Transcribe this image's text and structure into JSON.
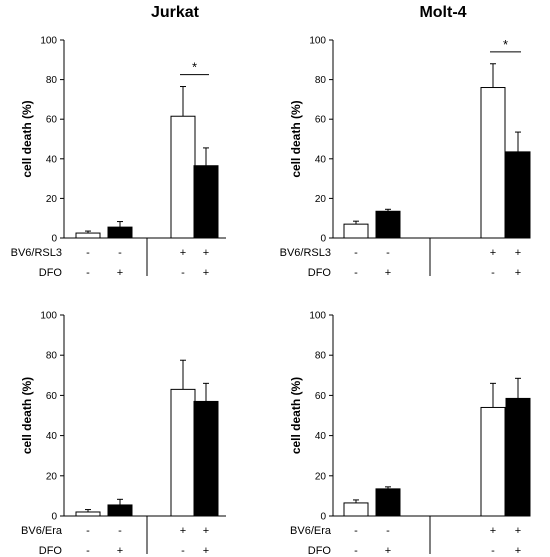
{
  "column_titles": [
    "Jurkat",
    "Molt-4"
  ],
  "colors": {
    "open_bar": "#ffffff",
    "filled_bar": "#000000",
    "stroke": "#000000"
  },
  "chart_data": [
    {
      "type": "bar",
      "panel": "Jurkat BV6/RSL3",
      "ylabel": "cell death (%)",
      "ylim": [
        0,
        100
      ],
      "yticks": [
        0,
        20,
        40,
        60,
        80,
        100
      ],
      "groups": [
        {
          "BV6/RSL3": "-",
          "DFO": "-",
          "value": 2.5,
          "error": 1.0,
          "fill": "open"
        },
        {
          "BV6/RSL3": "-",
          "DFO": "+",
          "value": 5.5,
          "error": 2.8,
          "fill": "filled"
        },
        {
          "BV6/RSL3": "+",
          "DFO": "-",
          "value": 61.5,
          "error": 15.0,
          "fill": "open"
        },
        {
          "BV6/RSL3": "+",
          "DFO": "+",
          "value": 36.5,
          "error": 9.0,
          "fill": "filled"
        }
      ],
      "row_labels": [
        "BV6/RSL3",
        "DFO"
      ],
      "significance": [
        {
          "between": [
            2,
            3
          ],
          "label": "*"
        }
      ]
    },
    {
      "type": "bar",
      "panel": "Molt-4 BV6/RSL3",
      "ylabel": "cell death (%)",
      "ylim": [
        0,
        100
      ],
      "yticks": [
        0,
        20,
        40,
        60,
        80,
        100
      ],
      "groups": [
        {
          "BV6/RSL3": "-",
          "DFO": "-",
          "value": 7.0,
          "error": 1.5,
          "fill": "open"
        },
        {
          "BV6/RSL3": "-",
          "DFO": "+",
          "value": 13.5,
          "error": 1.0,
          "fill": "filled"
        },
        {
          "BV6/RSL3": "+",
          "DFO": "-",
          "value": 76.0,
          "error": 12.0,
          "fill": "open"
        },
        {
          "BV6/RSL3": "+",
          "DFO": "+",
          "value": 43.5,
          "error": 10.0,
          "fill": "filled"
        }
      ],
      "row_labels": [
        "BV6/RSL3",
        "DFO"
      ],
      "significance": [
        {
          "between": [
            2,
            3
          ],
          "label": "*"
        }
      ]
    },
    {
      "type": "bar",
      "panel": "Jurkat BV6/Era",
      "ylabel": "cell death (%)",
      "ylim": [
        0,
        100
      ],
      "yticks": [
        0,
        20,
        40,
        60,
        80,
        100
      ],
      "groups": [
        {
          "BV6/Era": "-",
          "DFO": "-",
          "value": 2.0,
          "error": 1.2,
          "fill": "open"
        },
        {
          "BV6/Era": "-",
          "DFO": "+",
          "value": 5.5,
          "error": 2.8,
          "fill": "filled"
        },
        {
          "BV6/Era": "+",
          "DFO": "-",
          "value": 63.0,
          "error": 14.5,
          "fill": "open"
        },
        {
          "BV6/Era": "+",
          "DFO": "+",
          "value": 57.0,
          "error": 9.0,
          "fill": "filled"
        }
      ],
      "row_labels": [
        "BV6/Era",
        "DFO"
      ],
      "significance": []
    },
    {
      "type": "bar",
      "panel": "Molt-4 BV6/Era",
      "ylabel": "cell death (%)",
      "ylim": [
        0,
        100
      ],
      "yticks": [
        0,
        20,
        40,
        60,
        80,
        100
      ],
      "groups": [
        {
          "BV6/Era": "-",
          "DFO": "-",
          "value": 6.5,
          "error": 1.5,
          "fill": "open"
        },
        {
          "BV6/Era": "-",
          "DFO": "+",
          "value": 13.5,
          "error": 1.0,
          "fill": "filled"
        },
        {
          "BV6/Era": "+",
          "DFO": "-",
          "value": 54.0,
          "error": 12.0,
          "fill": "open"
        },
        {
          "BV6/Era": "+",
          "DFO": "+",
          "value": 58.5,
          "error": 10.0,
          "fill": "filled"
        }
      ],
      "row_labels": [
        "BV6/Era",
        "DFO"
      ],
      "significance": []
    }
  ]
}
